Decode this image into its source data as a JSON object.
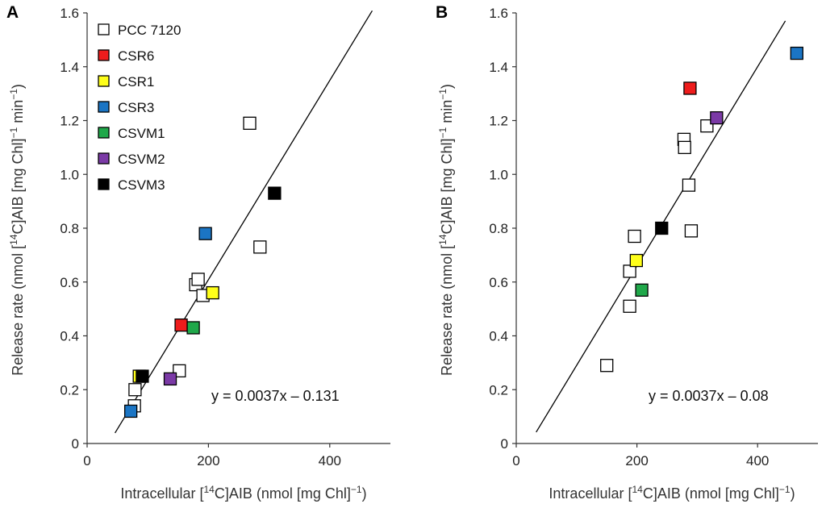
{
  "chart_data": [
    {
      "type": "scatter",
      "panel_label": "A",
      "xlabel": {
        "pre": "Intracellular [",
        "sup": "14",
        "post": "C]AIB (nmol [mg Chl]",
        "sup2": "−1",
        "end": ")"
      },
      "ylabel": {
        "pre": "Release rate (nmol [",
        "sup": "14",
        "post": "C]AIB [mg Chl]",
        "sup2": "−1",
        "mid": " min",
        "sup3": "−1",
        "end": ")"
      },
      "xlim": [
        0,
        500
      ],
      "ylim": [
        0,
        1.6
      ],
      "x_ticks": [
        "0",
        "200",
        "400"
      ],
      "x_tick_values": [
        0,
        200,
        400
      ],
      "y_ticks": [
        "0",
        "0.2",
        "0.4",
        "0.6",
        "0.8",
        "1.0",
        "1.2",
        "1.4",
        "1.6"
      ],
      "y_tick_values": [
        0,
        0.2,
        0.4,
        0.6,
        0.8,
        1.0,
        1.2,
        1.4,
        1.6
      ],
      "legend_position": "top-left",
      "equation": "y = 0.0037x – 0.131",
      "regression": {
        "slope": 0.0037,
        "intercept": -0.131,
        "x_range": [
          46,
          470
        ]
      },
      "series": [
        {
          "name": "PCC 7120",
          "color": "#ffffff",
          "points": [
            [
              78,
              0.14
            ],
            [
              79,
              0.2
            ],
            [
              152,
              0.27
            ],
            [
              179,
              0.59
            ],
            [
              183,
              0.61
            ],
            [
              191,
              0.55
            ],
            [
              268,
              1.19
            ],
            [
              285,
              0.73
            ]
          ]
        },
        {
          "name": "CSR6",
          "color": "#ee1c1c",
          "points": [
            [
              155,
              0.44
            ]
          ]
        },
        {
          "name": "CSR1",
          "color": "#ffff1a",
          "points": [
            [
              86,
              0.25
            ],
            [
              207,
              0.56
            ]
          ]
        },
        {
          "name": "CSR3",
          "color": "#1b75c4",
          "points": [
            [
              72,
              0.12
            ],
            [
              195,
              0.78
            ]
          ]
        },
        {
          "name": "CSVM1",
          "color": "#20a84a",
          "points": [
            [
              175,
              0.43
            ]
          ]
        },
        {
          "name": "CSVM2",
          "color": "#7b3aa6",
          "points": [
            [
              137,
              0.24
            ]
          ]
        },
        {
          "name": "CSVM3",
          "color": "#000000",
          "points": [
            [
              91,
              0.25
            ],
            [
              309,
              0.93
            ]
          ]
        }
      ]
    },
    {
      "type": "scatter",
      "panel_label": "B",
      "xlabel": {
        "pre": "Intracellular [",
        "sup": "14",
        "post": "C]AIB (nmol [mg Chl]",
        "sup2": "−1",
        "end": ")"
      },
      "ylabel": {
        "pre": "Release rate (nmol [",
        "sup": "14",
        "post": "C]AIB [mg Chl]",
        "sup2": "−1",
        "mid": " min",
        "sup3": "−1",
        "end": ")"
      },
      "xlim": [
        0,
        500
      ],
      "ylim": [
        0,
        1.6
      ],
      "x_ticks": [
        "0",
        "200",
        "400"
      ],
      "x_tick_values": [
        0,
        200,
        400
      ],
      "y_ticks": [
        "0",
        "0.2",
        "0.4",
        "0.6",
        "0.8",
        "1.0",
        "1.2",
        "1.4",
        "1.6"
      ],
      "y_tick_values": [
        0,
        0.2,
        0.4,
        0.6,
        0.8,
        1.0,
        1.2,
        1.4,
        1.6
      ],
      "equation": "y = 0.0037x – 0.08",
      "regression": {
        "slope": 0.0037,
        "intercept": -0.08,
        "x_range": [
          33,
          446
        ]
      },
      "series": [
        {
          "name": "PCC 7120",
          "color": "#ffffff",
          "points": [
            [
              150,
              0.29
            ],
            [
              188,
              0.51
            ],
            [
              188,
              0.64
            ],
            [
              196,
              0.77
            ],
            [
              278,
              1.13
            ],
            [
              279,
              1.1
            ],
            [
              286,
              0.96
            ],
            [
              290,
              0.79
            ],
            [
              316,
              1.18
            ]
          ]
        },
        {
          "name": "CSR6",
          "color": "#ee1c1c",
          "points": [
            [
              288,
              1.32
            ]
          ]
        },
        {
          "name": "CSR1",
          "color": "#ffff1a",
          "points": [
            [
              199,
              0.68
            ]
          ]
        },
        {
          "name": "CSR3",
          "color": "#1b75c4",
          "points": [
            [
              465,
              1.45
            ]
          ]
        },
        {
          "name": "CSVM1",
          "color": "#20a84a",
          "points": [
            [
              208,
              0.57
            ]
          ]
        },
        {
          "name": "CSVM2",
          "color": "#7b3aa6",
          "points": [
            [
              332,
              1.21
            ]
          ]
        },
        {
          "name": "CSVM3",
          "color": "#000000",
          "points": [
            [
              241,
              0.8
            ]
          ]
        }
      ]
    }
  ]
}
